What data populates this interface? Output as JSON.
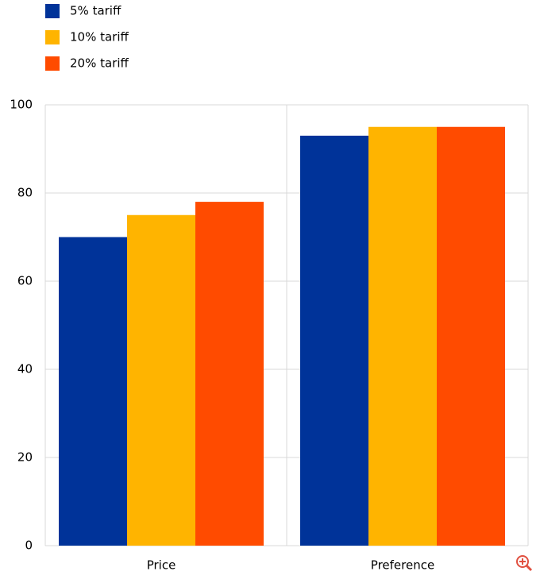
{
  "chart_data": {
    "type": "bar",
    "categories": [
      "Price",
      "Preference"
    ],
    "series": [
      {
        "name": "5% tariff",
        "color": "#003399",
        "values": [
          70,
          93
        ]
      },
      {
        "name": "10% tariff",
        "color": "#ffb400",
        "values": [
          75,
          95
        ]
      },
      {
        "name": "20% tariff",
        "color": "#ff4b00",
        "values": [
          78,
          95
        ]
      }
    ],
    "ylim": [
      0,
      100
    ],
    "yticks": [
      0,
      20,
      40,
      60,
      80,
      100
    ],
    "grid": true,
    "legend": "top-left"
  }
}
